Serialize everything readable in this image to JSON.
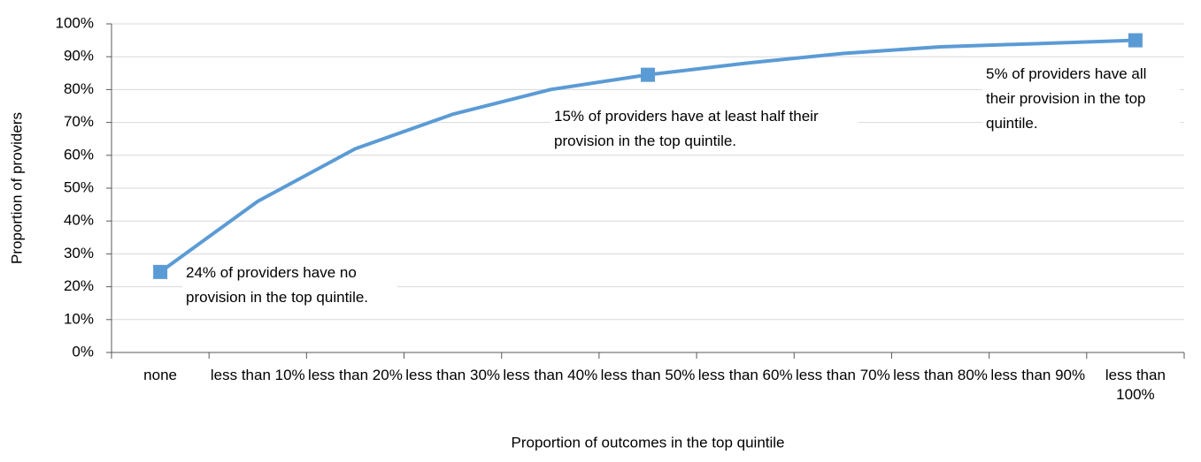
{
  "chart_data": {
    "type": "line",
    "xlabel": "Proportion of outcomes in the top quintile",
    "ylabel": "Proportion of providers",
    "categories": [
      "none",
      "less than 10%",
      "less than 20%",
      "less than 30%",
      "less than 40%",
      "less than 50%",
      "less than 60%",
      "less than 70%",
      "less than 80%",
      "less than 90%",
      "less than 100%"
    ],
    "series": [
      {
        "name": "Proportion of providers",
        "color": "#5b9bd5",
        "values": [
          24.5,
          46,
          62,
          72.5,
          80,
          84.5,
          88,
          91,
          93,
          94,
          95
        ]
      }
    ],
    "markers": [
      0,
      5,
      10
    ],
    "annotations": [
      "24% of providers have no provision in the top quintile.",
      "15% of providers have at least half their provision in the top quintile.",
      "5% of providers have all their provision in the top quintile."
    ],
    "ylim": [
      0,
      100
    ],
    "yticks": [
      {
        "value": 0,
        "label": "0%"
      },
      {
        "value": 10,
        "label": "10%"
      },
      {
        "value": 20,
        "label": "20%"
      },
      {
        "value": 30,
        "label": "30%"
      },
      {
        "value": 40,
        "label": "40%"
      },
      {
        "value": 50,
        "label": "50%"
      },
      {
        "value": 60,
        "label": "60%"
      },
      {
        "value": 70,
        "label": "70%"
      },
      {
        "value": 80,
        "label": "80%"
      },
      {
        "value": 90,
        "label": "90%"
      },
      {
        "value": 100,
        "label": "100%"
      }
    ],
    "grid": true
  }
}
